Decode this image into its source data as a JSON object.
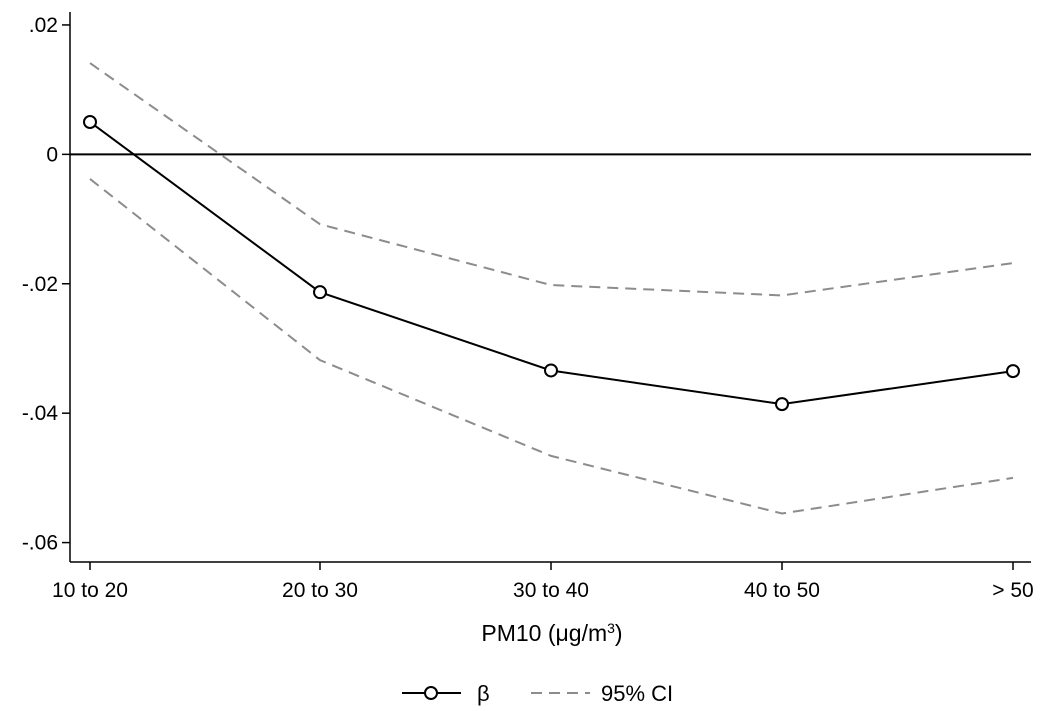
{
  "chart_data": {
    "type": "line",
    "categories": [
      "10 to 20",
      "20 to 30",
      "30 to 40",
      "40 to 50",
      "> 50"
    ],
    "series": [
      {
        "name": "β",
        "style": "solid-with-circle-markers",
        "color": "#000000",
        "values": [
          0.005,
          -0.0213,
          -0.0334,
          -0.0386,
          -0.0335
        ]
      },
      {
        "name": "95% CI",
        "style": "dashed",
        "color": "#8c8c8c",
        "values": [
          0.0141,
          -0.0108,
          -0.0202,
          -0.0218,
          -0.0168
        ]
      },
      {
        "name": "95% CI",
        "style": "dashed",
        "color": "#8c8c8c",
        "values": [
          -0.0038,
          -0.0318,
          -0.0466,
          -0.0555,
          -0.05
        ],
        "show_in_legend": false
      }
    ],
    "ylim": [
      -0.063,
      0.022
    ],
    "yticks": [
      0.02,
      0,
      -0.02,
      -0.04,
      -0.06
    ],
    "ytick_labels": [
      ".02",
      "0",
      "-.02",
      "-.04",
      "-.06"
    ],
    "xlabel": {
      "text": "PM10 (μg/m",
      "superscript": "3",
      "suffix": ")"
    },
    "ylabel": "",
    "reference_line": 0,
    "grid": false,
    "legend": {
      "position": "bottom-center",
      "entries": [
        "β",
        "95% CI"
      ]
    }
  }
}
